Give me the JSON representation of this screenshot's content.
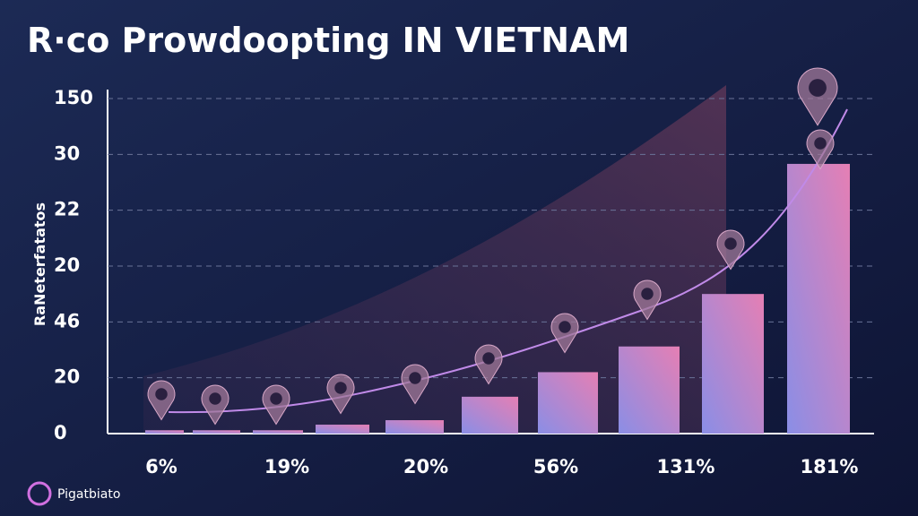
{
  "chart_data": {
    "type": "bar",
    "title": "R·co Prowdoopting IN VIETNAM",
    "y_label": "RaNeterfatatos",
    "footer": "Pigatbiato",
    "categories": [
      null,
      null,
      null,
      null,
      null,
      null,
      null,
      null,
      null,
      null
    ],
    "values": [
      0.06,
      0.06,
      0.06,
      0.16,
      0.24,
      0.66,
      1.1,
      1.56,
      2.5,
      4.83
    ],
    "x_labels": [
      "6%",
      "19%",
      "20%",
      "56%",
      "131%",
      "181%"
    ],
    "bar_colors": [
      "#8a8ee6",
      "#e57fb4"
    ],
    "ylim": [
      0,
      6
    ],
    "yticks": [
      0,
      {
        "value": 1,
        "label": "20"
      },
      {
        "value": 2,
        "label": "46"
      },
      {
        "value": 3,
        "label": "20"
      },
      {
        "value": 4,
        "label": "22"
      },
      {
        "value": 5,
        "label": "30"
      },
      {
        "value": 6,
        "label": "150"
      }
    ],
    "grid": true
  }
}
